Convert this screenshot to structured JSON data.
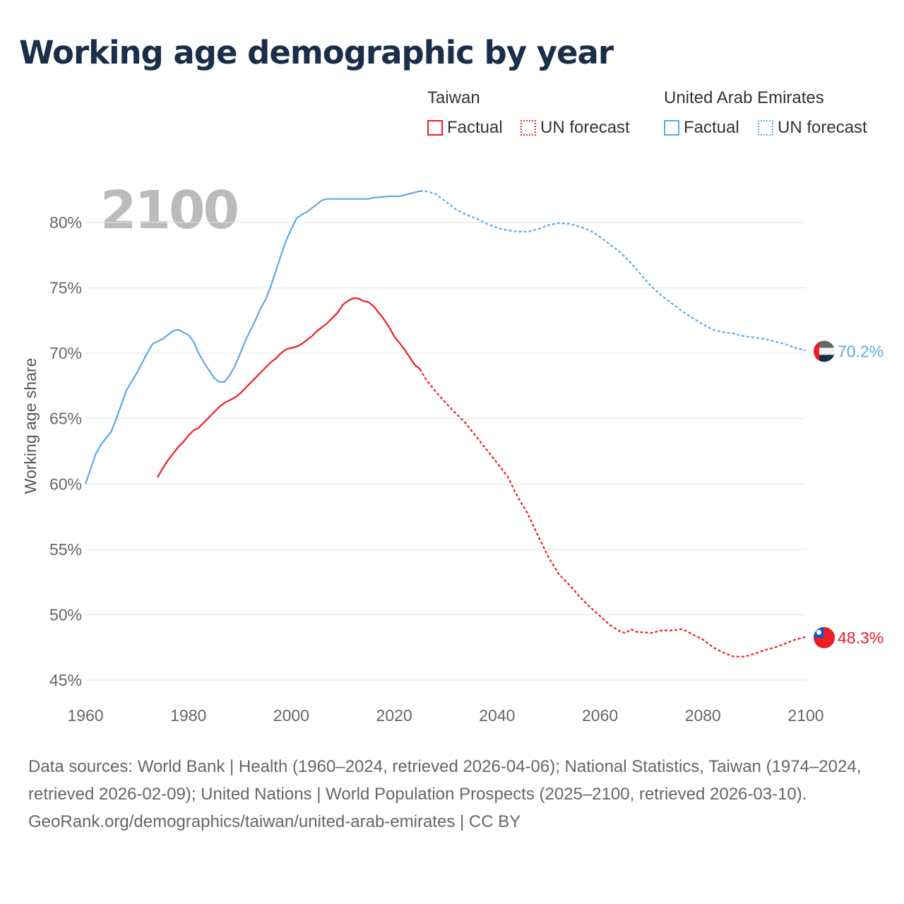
{
  "title": "Working age demographic by year",
  "legend": {
    "groups": [
      {
        "name": "Taiwan",
        "color": "#ee1c25",
        "items": [
          "Factual",
          "UN forecast"
        ]
      },
      {
        "name": "United Arab Emirates",
        "color": "#5ba8ea",
        "items": [
          "Factual",
          "UN forecast"
        ]
      }
    ]
  },
  "year_label": "2100",
  "footer": {
    "sources": "Data sources: World Bank | Health (1960–2024, retrieved 2026-04-06); National Statistics, Taiwan (1974–2024, retrieved 2026-02-09); United Nations | World Population Prospects (2025–2100, retrieved 2026-03-10).",
    "credit": "GeoRank.org/demographics/taiwan/united-arab-emirates | CC BY"
  },
  "chart_data": {
    "type": "line",
    "title": "Working age demographic by year",
    "xlabel": "",
    "ylabel": "Working age share",
    "xlim": [
      1960,
      2100
    ],
    "ylim": [
      45,
      82.5
    ],
    "xticks": [
      1960,
      1980,
      2000,
      2020,
      2040,
      2060,
      2080,
      2100
    ],
    "yticks": [
      45,
      50,
      55,
      60,
      65,
      70,
      75,
      80
    ],
    "ytick_labels": [
      "45%",
      "50%",
      "55%",
      "60%",
      "65%",
      "70%",
      "75%",
      "80%"
    ],
    "grid": true,
    "forecast_start": 2025,
    "series": [
      {
        "name": "United Arab Emirates",
        "color": "#5ba8ea",
        "end_label": "70.2%",
        "x": [
          1960,
          1962,
          1963,
          1965,
          1966,
          1968,
          1970,
          1972,
          1973,
          1975,
          1976,
          1977,
          1978,
          1979,
          1980,
          1981,
          1982,
          1983,
          1984,
          1985,
          1986,
          1987,
          1988,
          1989,
          1990,
          1991,
          1992,
          1993,
          1994,
          1995,
          1996,
          1997,
          1998,
          1999,
          2000,
          2001,
          2002,
          2003,
          2004,
          2005,
          2006,
          2007,
          2010,
          2015,
          2016,
          2019,
          2021,
          2024,
          2025,
          2026,
          2028,
          2030,
          2032,
          2034,
          2036,
          2038,
          2040,
          2042,
          2044,
          2046,
          2048,
          2050,
          2052,
          2054,
          2056,
          2058,
          2060,
          2062,
          2064,
          2066,
          2068,
          2070,
          2072,
          2074,
          2076,
          2078,
          2080,
          2082,
          2084,
          2086,
          2088,
          2090,
          2092,
          2094,
          2096,
          2098,
          2100
        ],
        "y": [
          60,
          62.3,
          63,
          64,
          65,
          67.2,
          68.5,
          70,
          70.7,
          71.1,
          71.4,
          71.7,
          71.8,
          71.6,
          71.4,
          70.9,
          70,
          69.3,
          68.7,
          68.1,
          67.8,
          67.8,
          68.3,
          69,
          69.9,
          70.9,
          71.7,
          72.5,
          73.4,
          74.1,
          75.1,
          76.3,
          77.5,
          78.6,
          79.5,
          80.3,
          80.6,
          80.8,
          81.1,
          81.4,
          81.7,
          81.8,
          81.8,
          81.8,
          81.9,
          82,
          82,
          82.3,
          82.4,
          82.4,
          82.2,
          81.6,
          81,
          80.6,
          80.3,
          79.9,
          79.6,
          79.4,
          79.3,
          79.3,
          79.5,
          79.8,
          79.95,
          79.9,
          79.7,
          79.4,
          78.9,
          78.3,
          77.7,
          76.9,
          76,
          75.1,
          74.4,
          73.8,
          73.2,
          72.7,
          72.2,
          71.8,
          71.6,
          71.5,
          71.3,
          71.2,
          71.1,
          70.9,
          70.7,
          70.4,
          70.2
        ]
      },
      {
        "name": "Taiwan",
        "color": "#ee1c25",
        "end_label": "48.3%",
        "x": [
          1974,
          1975,
          1976,
          1977,
          1978,
          1979,
          1980,
          1981,
          1982,
          1983,
          1984,
          1985,
          1986,
          1987,
          1988,
          1989,
          1990,
          1991,
          1992,
          1993,
          1994,
          1995,
          1996,
          1997,
          1998,
          1999,
          2000,
          2001,
          2002,
          2003,
          2004,
          2005,
          2006,
          2007,
          2008,
          2009,
          2010,
          2011,
          2012,
          2013,
          2014,
          2015,
          2016,
          2017,
          2018,
          2019,
          2020,
          2021,
          2022,
          2023,
          2024,
          2025,
          2026,
          2027,
          2028,
          2030,
          2032,
          2034,
          2036,
          2038,
          2040,
          2042,
          2044,
          2046,
          2048,
          2050,
          2052,
          2054,
          2056,
          2058,
          2060,
          2062,
          2064,
          2065,
          2066,
          2067,
          2070,
          2072,
          2074,
          2076,
          2078,
          2080,
          2082,
          2084,
          2086,
          2088,
          2090,
          2092,
          2094,
          2096,
          2098,
          2100
        ],
        "y": [
          60.5,
          61.2,
          61.8,
          62.3,
          62.8,
          63.2,
          63.7,
          64.1,
          64.3,
          64.7,
          65.1,
          65.5,
          65.9,
          66.2,
          66.4,
          66.6,
          66.9,
          67.3,
          67.7,
          68.1,
          68.5,
          68.9,
          69.3,
          69.6,
          70,
          70.3,
          70.4,
          70.5,
          70.7,
          71,
          71.3,
          71.7,
          72,
          72.3,
          72.7,
          73.1,
          73.7,
          74,
          74.2,
          74.2,
          74,
          73.9,
          73.6,
          73.1,
          72.6,
          72,
          71.3,
          70.8,
          70.3,
          69.7,
          69.1,
          68.8,
          68.1,
          67.6,
          67.1,
          66.2,
          65.4,
          64.6,
          63.6,
          62.6,
          61.6,
          60.6,
          59,
          57.7,
          56,
          54.4,
          53.1,
          52.3,
          51.4,
          50.6,
          49.9,
          49.2,
          48.7,
          48.6,
          48.9,
          48.7,
          48.6,
          48.8,
          48.8,
          48.9,
          48.5,
          48.1,
          47.5,
          47.1,
          46.8,
          46.8,
          47,
          47.3,
          47.5,
          47.8,
          48.1,
          48.3
        ]
      }
    ]
  }
}
